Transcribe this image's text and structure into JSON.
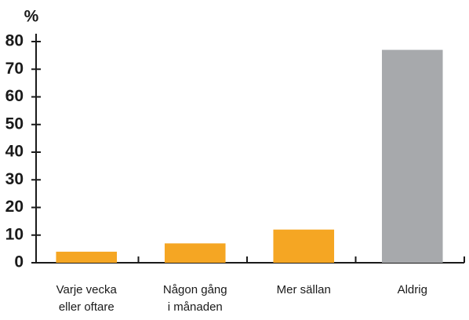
{
  "chart_data": {
    "type": "bar",
    "ylabel": "%",
    "categories": [
      [
        "Varje vecka",
        "eller oftare"
      ],
      [
        "Någon gång",
        "i månaden"
      ],
      [
        "Mer sällan"
      ],
      [
        "Aldrig"
      ]
    ],
    "values": [
      4,
      7,
      12,
      77
    ],
    "colors": [
      "#f5a623",
      "#f5a623",
      "#f5a623",
      "#a7a9ac"
    ],
    "ylim": [
      0,
      80
    ],
    "yticks": [
      0,
      10,
      20,
      30,
      40,
      50,
      60,
      70,
      80
    ],
    "grid": false
  }
}
